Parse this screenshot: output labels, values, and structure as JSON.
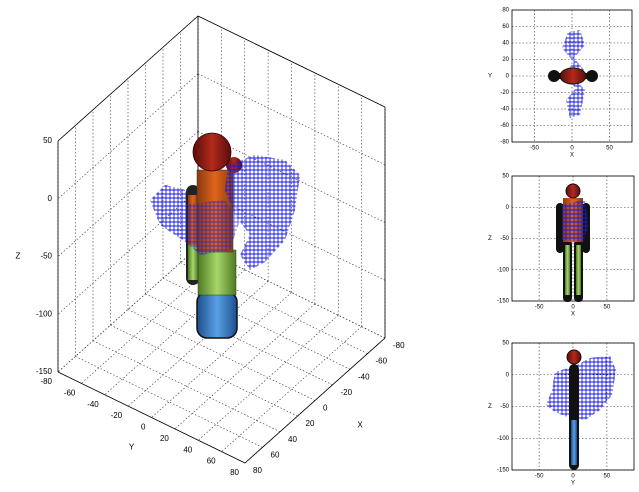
{
  "chart_data": [
    {
      "type": "scatter3d",
      "xlabel": "X",
      "ylabel": "Y",
      "zlabel": "Z",
      "xlim": [
        -80,
        80
      ],
      "ylim": [
        -80,
        80
      ],
      "zlim": [
        -150,
        50
      ],
      "xticks": [
        -80,
        -60,
        -40,
        -20,
        0,
        20,
        40,
        60,
        80
      ],
      "yticks": [
        -80,
        -60,
        -40,
        -20,
        0,
        20,
        40,
        60,
        80
      ],
      "zticks": [
        -150,
        -100,
        -50,
        0,
        50
      ],
      "grid": true
    },
    {
      "type": "scatter",
      "xlabel": "X",
      "ylabel": "Y",
      "xlim": [
        -80,
        80
      ],
      "ylim": [
        -80,
        80
      ],
      "xticks": [
        -50,
        0,
        50
      ],
      "yticks": [
        -80,
        -60,
        -40,
        -20,
        0,
        20,
        40,
        60,
        80
      ],
      "grid": true
    },
    {
      "type": "scatter",
      "xlabel": "X",
      "ylabel": "Z",
      "xlim": [
        -90,
        90
      ],
      "ylim": [
        -150,
        50
      ],
      "xticks": [
        -50,
        0,
        50
      ],
      "yticks": [
        -150,
        -100,
        -50,
        0,
        50
      ],
      "grid": true
    },
    {
      "type": "scatter",
      "xlabel": "Y",
      "ylabel": "Z",
      "xlim": [
        -90,
        90
      ],
      "ylim": [
        -150,
        50
      ],
      "xticks": [
        -50,
        0,
        50
      ],
      "yticks": [
        -150,
        -100,
        -50,
        0,
        50
      ],
      "grid": true
    }
  ]
}
